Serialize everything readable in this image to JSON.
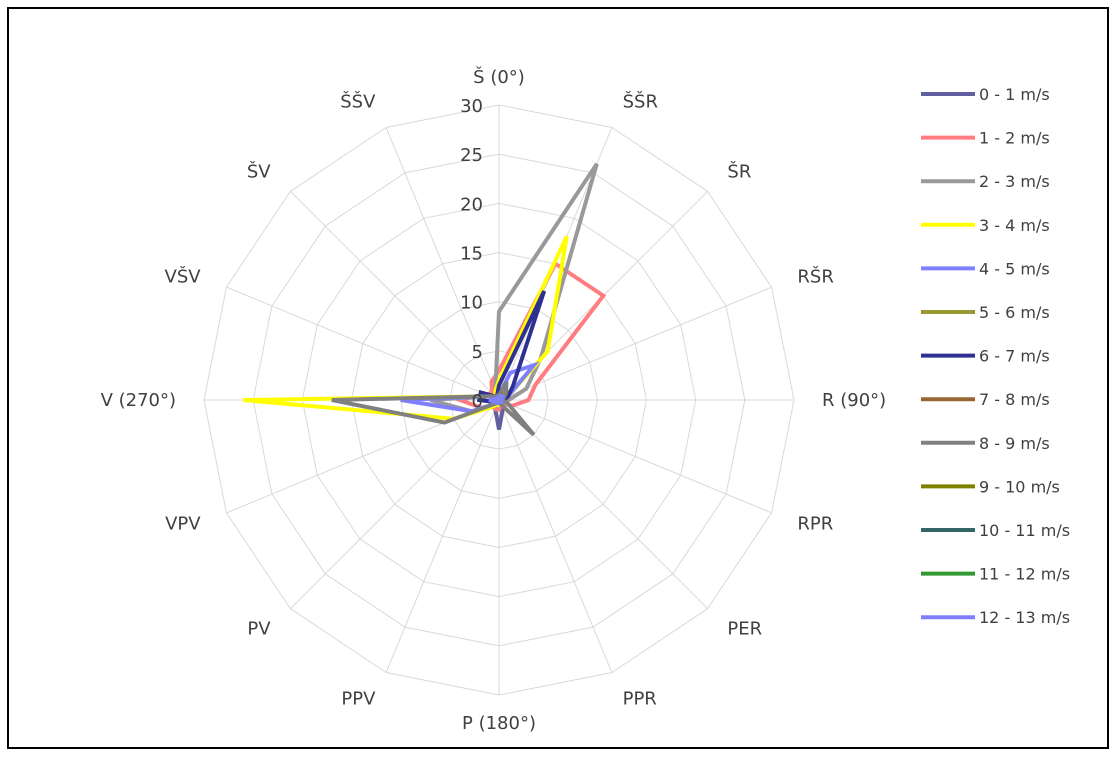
{
  "chart_data": {
    "type": "radar",
    "title": "",
    "categories": [
      "Š (0°)",
      "ŠŠR",
      "ŠR",
      "RŠR",
      "R (90°)",
      "RPR",
      "PER",
      "PPR",
      "P (180°)",
      "PPV",
      "PV",
      "VPV",
      "V (270°)",
      "VŠV",
      "ŠV",
      "ŠŠV"
    ],
    "radial_ticks": [
      "0",
      "5",
      "10",
      "15",
      "20",
      "25",
      "30"
    ],
    "rlim": [
      0,
      30
    ],
    "grid": true,
    "legend_position": "right",
    "series": [
      {
        "name": "0 - 1 m/s",
        "color": "#6060a0",
        "values": [
          1,
          1,
          1,
          0.5,
          0.3,
          0.5,
          0.8,
          1,
          3,
          1,
          0.5,
          0.5,
          0.8,
          0.5,
          0.5,
          1
        ]
      },
      {
        "name": "1 - 2 m/s",
        "color": "#ff7c80",
        "values": [
          3,
          15,
          15,
          4,
          3,
          1.5,
          0.5,
          0.5,
          1,
          1,
          1,
          2,
          4,
          1.5,
          1,
          2
        ]
      },
      {
        "name": "2 - 3 m/s",
        "color": "#999999",
        "values": [
          9,
          26,
          6,
          3,
          1,
          0.5,
          0.5,
          0.3,
          0.5,
          0.5,
          1,
          3,
          7,
          1,
          0.5,
          1
        ]
      },
      {
        "name": "3 - 4 m/s",
        "color": "#ffff00",
        "values": [
          2,
          18,
          7,
          1,
          0.5,
          0.3,
          0.3,
          0.3,
          0.5,
          0.5,
          1,
          5,
          26,
          1,
          0.5,
          1
        ]
      },
      {
        "name": "4 - 5 m/s",
        "color": "#7f7fff",
        "values": [
          0.5,
          3,
          5,
          1,
          0.5,
          0.3,
          0.3,
          0.3,
          0.3,
          0.3,
          0.5,
          3,
          10,
          1,
          0.5,
          0.5
        ]
      },
      {
        "name": "5 - 6 m/s",
        "color": "#999933",
        "values": [
          0.5,
          1,
          1,
          0.5,
          0.3,
          0.3,
          0.3,
          0.3,
          0.3,
          0.3,
          0.3,
          0.5,
          2,
          2,
          0.5,
          0.5
        ]
      },
      {
        "name": "6 - 7 m/s",
        "color": "#2e3192",
        "values": [
          1.5,
          12,
          2,
          1,
          0.5,
          0.3,
          0.3,
          0.3,
          0.3,
          0.3,
          0.3,
          0.5,
          2,
          2,
          0.5,
          0.5
        ]
      },
      {
        "name": "7 - 8 m/s",
        "color": "#996633",
        "values": [
          0.3,
          0.5,
          0.3,
          0.3,
          0.3,
          0.3,
          0.3,
          0.3,
          0.3,
          0.3,
          0.3,
          0.3,
          0.5,
          0.3,
          0.3,
          0.3
        ]
      },
      {
        "name": "8 - 9 m/s",
        "color": "#808080",
        "values": [
          0.5,
          2,
          1,
          0.5,
          0.3,
          1,
          5,
          0.5,
          0.3,
          0.3,
          0.5,
          6,
          17,
          1,
          0.5,
          0.5
        ]
      },
      {
        "name": "9 - 10 m/s",
        "color": "#808000",
        "values": [
          0.3,
          0.5,
          0.3,
          0.3,
          0.3,
          0.3,
          0.3,
          0.3,
          0.3,
          0.3,
          0.3,
          0.3,
          0.5,
          0.3,
          0.3,
          0.3
        ]
      },
      {
        "name": "10 - 11 m/s",
        "color": "#336666",
        "values": [
          0.3,
          0.3,
          0.3,
          0.3,
          0.3,
          0.3,
          0.3,
          0.3,
          0.3,
          0.3,
          0.3,
          0.3,
          0.3,
          0.3,
          0.3,
          0.3
        ]
      },
      {
        "name": "11 - 12 m/s",
        "color": "#339933",
        "values": [
          0.3,
          0.3,
          0.3,
          0.3,
          0.3,
          0.3,
          0.3,
          0.3,
          0.3,
          0.3,
          0.3,
          0.3,
          0.3,
          0.3,
          0.3,
          0.3
        ]
      },
      {
        "name": "12 - 13 m/s",
        "color": "#7f7fff",
        "values": [
          0.3,
          0.5,
          0.5,
          0.3,
          0.3,
          0.3,
          0.3,
          0.3,
          0.3,
          0.3,
          0.3,
          0.5,
          1,
          0.3,
          0.3,
          0.3
        ]
      }
    ]
  }
}
